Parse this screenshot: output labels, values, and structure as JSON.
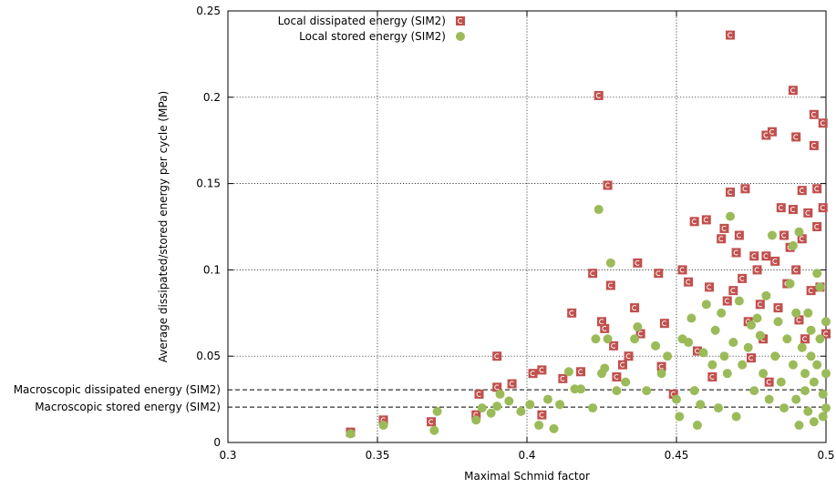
{
  "chart_data": {
    "type": "scatter",
    "xlabel": "Maximal Schmid factor",
    "ylabel": "Average dissipated/stored energy per cycle (MPa)",
    "xlim": [
      0.3,
      0.5
    ],
    "ylim": [
      0,
      0.25
    ],
    "xticks": [
      "0.3",
      "0.35",
      "0.4",
      "0.45",
      "0.5"
    ],
    "yticks": [
      "0",
      "0.05",
      "0.1",
      "0.15",
      "0.2",
      "0.25"
    ],
    "grid": true,
    "legend_position": "top-right",
    "reference_lines": [
      {
        "label": "Macroscopic dissipated energy (SIM2)",
        "y": 0.0305
      },
      {
        "label": "Macroscopic stored energy (SIM2)",
        "y": 0.0205
      }
    ],
    "series": [
      {
        "name": "Local dissipated energy (SIM2)",
        "marker": "square",
        "color": "#c0504d",
        "points": [
          [
            0.341,
            0.006
          ],
          [
            0.352,
            0.013
          ],
          [
            0.368,
            0.012
          ],
          [
            0.383,
            0.016
          ],
          [
            0.384,
            0.028
          ],
          [
            0.39,
            0.032
          ],
          [
            0.39,
            0.05
          ],
          [
            0.395,
            0.034
          ],
          [
            0.402,
            0.04
          ],
          [
            0.405,
            0.042
          ],
          [
            0.405,
            0.016
          ],
          [
            0.412,
            0.037
          ],
          [
            0.415,
            0.075
          ],
          [
            0.418,
            0.041
          ],
          [
            0.422,
            0.098
          ],
          [
            0.424,
            0.201
          ],
          [
            0.425,
            0.07
          ],
          [
            0.426,
            0.066
          ],
          [
            0.427,
            0.149
          ],
          [
            0.428,
            0.091
          ],
          [
            0.429,
            0.056
          ],
          [
            0.43,
            0.038
          ],
          [
            0.432,
            0.045
          ],
          [
            0.434,
            0.05
          ],
          [
            0.436,
            0.078
          ],
          [
            0.437,
            0.104
          ],
          [
            0.438,
            0.063
          ],
          [
            0.444,
            0.098
          ],
          [
            0.445,
            0.044
          ],
          [
            0.446,
            0.069
          ],
          [
            0.449,
            0.028
          ],
          [
            0.452,
            0.1
          ],
          [
            0.454,
            0.093
          ],
          [
            0.456,
            0.128
          ],
          [
            0.457,
            0.053
          ],
          [
            0.46,
            0.129
          ],
          [
            0.461,
            0.09
          ],
          [
            0.462,
            0.038
          ],
          [
            0.465,
            0.118
          ],
          [
            0.466,
            0.124
          ],
          [
            0.467,
            0.082
          ],
          [
            0.468,
            0.236
          ],
          [
            0.468,
            0.145
          ],
          [
            0.469,
            0.088
          ],
          [
            0.47,
            0.11
          ],
          [
            0.471,
            0.12
          ],
          [
            0.472,
            0.095
          ],
          [
            0.473,
            0.147
          ],
          [
            0.474,
            0.07
          ],
          [
            0.475,
            0.049
          ],
          [
            0.476,
            0.108
          ],
          [
            0.477,
            0.1
          ],
          [
            0.478,
            0.08
          ],
          [
            0.479,
            0.06
          ],
          [
            0.48,
            0.178
          ],
          [
            0.48,
            0.108
          ],
          [
            0.481,
            0.035
          ],
          [
            0.482,
            0.18
          ],
          [
            0.483,
            0.105
          ],
          [
            0.484,
            0.078
          ],
          [
            0.485,
            0.136
          ],
          [
            0.486,
            0.12
          ],
          [
            0.487,
            0.092
          ],
          [
            0.488,
            0.113
          ],
          [
            0.489,
            0.204
          ],
          [
            0.489,
            0.135
          ],
          [
            0.49,
            0.177
          ],
          [
            0.49,
            0.1
          ],
          [
            0.491,
            0.071
          ],
          [
            0.492,
            0.146
          ],
          [
            0.492,
            0.118
          ],
          [
            0.493,
            0.06
          ],
          [
            0.494,
            0.133
          ],
          [
            0.495,
            0.088
          ],
          [
            0.496,
            0.19
          ],
          [
            0.496,
            0.172
          ],
          [
            0.497,
            0.147
          ],
          [
            0.497,
            0.125
          ],
          [
            0.498,
            0.09
          ],
          [
            0.499,
            0.185
          ],
          [
            0.499,
            0.136
          ],
          [
            0.5,
            0.063
          ]
        ]
      },
      {
        "name": "Local stored energy (SIM2)",
        "marker": "circle",
        "color": "#9bbb59",
        "points": [
          [
            0.341,
            0.005
          ],
          [
            0.352,
            0.01
          ],
          [
            0.369,
            0.007
          ],
          [
            0.37,
            0.018
          ],
          [
            0.383,
            0.013
          ],
          [
            0.385,
            0.02
          ],
          [
            0.388,
            0.017
          ],
          [
            0.39,
            0.021
          ],
          [
            0.391,
            0.028
          ],
          [
            0.394,
            0.024
          ],
          [
            0.398,
            0.018
          ],
          [
            0.401,
            0.022
          ],
          [
            0.404,
            0.01
          ],
          [
            0.407,
            0.025
          ],
          [
            0.409,
            0.008
          ],
          [
            0.411,
            0.022
          ],
          [
            0.414,
            0.041
          ],
          [
            0.416,
            0.031
          ],
          [
            0.418,
            0.031
          ],
          [
            0.422,
            0.02
          ],
          [
            0.423,
            0.06
          ],
          [
            0.424,
            0.135
          ],
          [
            0.425,
            0.04
          ],
          [
            0.426,
            0.043
          ],
          [
            0.427,
            0.06
          ],
          [
            0.428,
            0.104
          ],
          [
            0.43,
            0.03
          ],
          [
            0.433,
            0.035
          ],
          [
            0.436,
            0.06
          ],
          [
            0.437,
            0.067
          ],
          [
            0.44,
            0.03
          ],
          [
            0.443,
            0.056
          ],
          [
            0.445,
            0.04
          ],
          [
            0.447,
            0.05
          ],
          [
            0.45,
            0.025
          ],
          [
            0.451,
            0.015
          ],
          [
            0.452,
            0.06
          ],
          [
            0.454,
            0.058
          ],
          [
            0.455,
            0.072
          ],
          [
            0.456,
            0.03
          ],
          [
            0.457,
            0.01
          ],
          [
            0.458,
            0.022
          ],
          [
            0.459,
            0.052
          ],
          [
            0.46,
            0.08
          ],
          [
            0.462,
            0.045
          ],
          [
            0.463,
            0.065
          ],
          [
            0.464,
            0.02
          ],
          [
            0.465,
            0.075
          ],
          [
            0.466,
            0.05
          ],
          [
            0.467,
            0.04
          ],
          [
            0.468,
            0.131
          ],
          [
            0.469,
            0.058
          ],
          [
            0.47,
            0.015
          ],
          [
            0.471,
            0.082
          ],
          [
            0.472,
            0.045
          ],
          [
            0.474,
            0.055
          ],
          [
            0.475,
            0.068
          ],
          [
            0.476,
            0.03
          ],
          [
            0.477,
            0.072
          ],
          [
            0.478,
            0.062
          ],
          [
            0.479,
            0.04
          ],
          [
            0.48,
            0.085
          ],
          [
            0.481,
            0.025
          ],
          [
            0.482,
            0.12
          ],
          [
            0.483,
            0.05
          ],
          [
            0.484,
            0.07
          ],
          [
            0.485,
            0.035
          ],
          [
            0.486,
            0.02
          ],
          [
            0.487,
            0.06
          ],
          [
            0.488,
            0.092
          ],
          [
            0.489,
            0.045
          ],
          [
            0.489,
            0.114
          ],
          [
            0.49,
            0.025
          ],
          [
            0.49,
            0.075
          ],
          [
            0.491,
            0.122
          ],
          [
            0.491,
            0.01
          ],
          [
            0.492,
            0.055
          ],
          [
            0.493,
            0.04
          ],
          [
            0.493,
            0.03
          ],
          [
            0.494,
            0.075
          ],
          [
            0.494,
            0.018
          ],
          [
            0.495,
            0.065
          ],
          [
            0.495,
            0.05
          ],
          [
            0.496,
            0.035
          ],
          [
            0.496,
            0.012
          ],
          [
            0.497,
            0.098
          ],
          [
            0.497,
            0.045
          ],
          [
            0.498,
            0.09
          ],
          [
            0.498,
            0.06
          ],
          [
            0.499,
            0.028
          ],
          [
            0.499,
            0.015
          ],
          [
            0.5,
            0.07
          ],
          [
            0.5,
            0.04
          ],
          [
            0.5,
            0.02
          ]
        ]
      }
    ]
  }
}
